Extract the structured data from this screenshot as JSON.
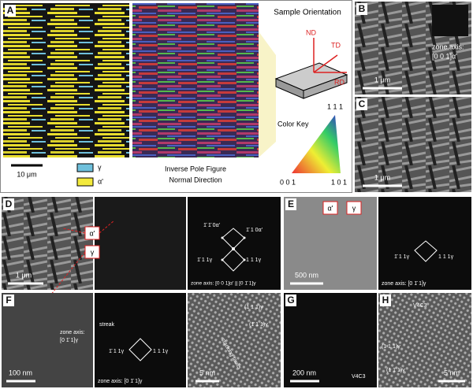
{
  "panel_a": {
    "letter": "A",
    "scale_bar": "10 μm",
    "phase_legend": [
      "γ",
      "α'"
    ],
    "ipf_caption": [
      "Inverse Pole Figure",
      "Normal Direction"
    ],
    "orientation_title": "Sample Orientation",
    "orientation_axes": [
      "ND",
      "TD",
      "RD"
    ],
    "color_key_title": "Color Key",
    "color_key_corners": [
      "1 1 1",
      "0 0 1",
      "1 0 1"
    ]
  },
  "panel_b": {
    "letter": "B",
    "zone_axis": [
      "zone axis:",
      "[0 0 1]α'"
    ],
    "scale_bar": "1 μm"
  },
  "panel_c": {
    "letter": "C",
    "scale_bar": "1 μm"
  },
  "panel_d": {
    "letter": "D",
    "phase_labels": [
      "α'",
      "γ"
    ],
    "scale_bar": "1 μm",
    "spots": [
      "1̄ 1̄ 0α'",
      "1̄ 1 0α'",
      "1̄ 1 1γ",
      "1 1 1γ"
    ],
    "zone_axis": "zone axis: [0 0 1]α' || [0 1̄ 1]γ"
  },
  "panel_e": {
    "letter": "E",
    "phase_labels": [
      "α'",
      "γ"
    ],
    "scale_bar": "500 nm",
    "spots": [
      "1̄ 1 1γ",
      "1 1 1γ"
    ],
    "zone_axis": "zone axis: [0 1̄ 1]γ"
  },
  "panel_f": {
    "letter": "F",
    "zone_axis_image": [
      "zone axis:",
      "[0 1̄ 1]γ"
    ],
    "scale_bar": "100 nm",
    "streak": "streak",
    "spots": [
      "1̄ 1 1γ",
      "1 1 1γ"
    ],
    "zone_axis": "zone axis: [0 1̄ 1]γ",
    "hr_scale_bar": "5 nm",
    "planes": [
      "(1 1 1)γ",
      "(1̄ 1 1)γ"
    ],
    "faults": "stacking faults"
  },
  "panel_g": {
    "letter": "G",
    "scale_bar": "200 nm",
    "precipitate": "V4C3"
  },
  "panel_h": {
    "letter": "H",
    "precipitate": "V4C3",
    "planes": [
      "(1 1 1)γ",
      "(1 1̄ 1)γ"
    ],
    "scale_bar": "5 nm"
  }
}
